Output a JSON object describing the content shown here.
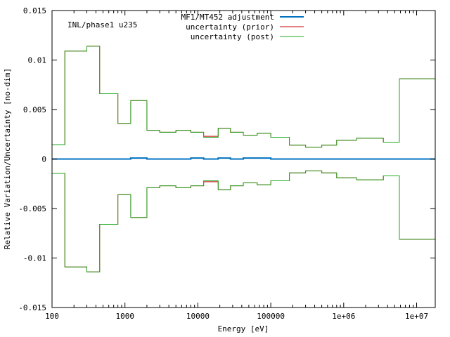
{
  "chart_data": {
    "type": "line",
    "title": "INL/phase1 u235",
    "xlabel": "Energy [eV]",
    "ylabel": "Relative Variation/Uncertainty [no-dim]",
    "x_scale": "log",
    "xlim": [
      100,
      18000000
    ],
    "ylim": [
      -0.015,
      0.015
    ],
    "x_ticks": [
      {
        "value": 100,
        "label": "100"
      },
      {
        "value": 1000,
        "label": "1000"
      },
      {
        "value": 10000,
        "label": "10000"
      },
      {
        "value": 100000,
        "label": "100000"
      },
      {
        "value": 1000000,
        "label": "1e+06"
      },
      {
        "value": 10000000,
        "label": "1e+07"
      }
    ],
    "y_ticks": [
      {
        "value": 0.015,
        "label": "0.015"
      },
      {
        "value": 0.01,
        "label": "0.01"
      },
      {
        "value": 0.005,
        "label": "0.005"
      },
      {
        "value": 0,
        "label": "0"
      },
      {
        "value": -0.005,
        "label": "-0.005"
      },
      {
        "value": -0.01,
        "label": "-0.01"
      },
      {
        "value": -0.015,
        "label": "-0.015"
      }
    ],
    "legend_position": "top-center",
    "grid": false,
    "bin_edges": [
      100,
      150,
      300,
      450,
      800,
      1200,
      2000,
      3000,
      5000,
      8000,
      12000,
      19000,
      28000,
      42000,
      65000,
      100000,
      180000,
      300000,
      500000,
      800000,
      1500000,
      3500000,
      5800000,
      18000000
    ],
    "series": [
      {
        "name": "MF1/MT452 adjustment",
        "color": "#0070c0",
        "width": 2,
        "symmetric": false,
        "values": [
          0,
          0,
          0,
          0,
          0,
          0.0001,
          0,
          0,
          0,
          0.0001,
          0,
          0.0001,
          0,
          0.0001,
          0.0001,
          0,
          0,
          0,
          0,
          0,
          0,
          0,
          0
        ]
      },
      {
        "name": "uncertainty (prior)",
        "color": "#c00000",
        "width": 1,
        "symmetric": true,
        "values": [
          0.00145,
          0.0109,
          0.0114,
          0.0066,
          0.0036,
          0.0059,
          0.0029,
          0.0027,
          0.0029,
          0.0027,
          0.0023,
          0.0031,
          0.0027,
          0.0024,
          0.0026,
          0.0022,
          0.0014,
          0.0012,
          0.0014,
          0.0019,
          0.0021,
          0.0017,
          0.0081
        ]
      },
      {
        "name": "uncertainty (post)",
        "color": "#22aa22",
        "width": 1,
        "symmetric": true,
        "values": [
          0.00145,
          0.0109,
          0.0114,
          0.0066,
          0.0036,
          0.0059,
          0.0029,
          0.0027,
          0.0029,
          0.0027,
          0.0022,
          0.0031,
          0.0027,
          0.0024,
          0.0026,
          0.0022,
          0.0014,
          0.0012,
          0.0014,
          0.0019,
          0.0021,
          0.0017,
          0.0081
        ]
      }
    ]
  }
}
